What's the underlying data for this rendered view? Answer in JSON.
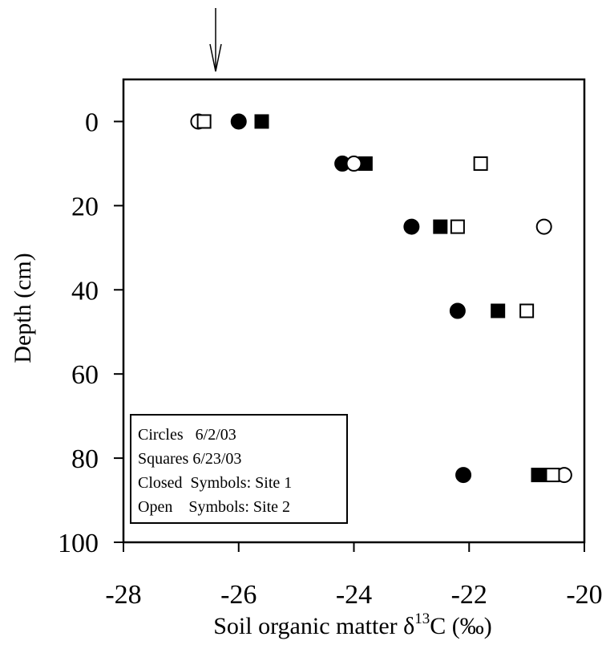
{
  "chart_data": {
    "type": "scatter",
    "xlabel": {
      "prefix": "Soil organic matter δ",
      "superscript": "13",
      "suffix": "C (‰)"
    },
    "ylabel": "Depth (cm)",
    "xlim": [
      -28,
      -20
    ],
    "ylim": [
      100,
      -10
    ],
    "y_inverted": true,
    "x_ticks": [
      -28,
      -26,
      -24,
      -22,
      -20
    ],
    "x_tick_labels": [
      "-28",
      "-26",
      "-24",
      "-22",
      "-20"
    ],
    "y_ticks": [
      0,
      20,
      40,
      60,
      80,
      100
    ],
    "y_tick_labels": [
      "0",
      "20",
      "40",
      "60",
      "80",
      "100"
    ],
    "grid": false,
    "legend_position": "bottom-left",
    "legend_lines": [
      "Circles   6/2/03",
      "Squares 6/23/03",
      "Closed  Symbols: Site 1",
      "Open    Symbols: Site 2"
    ],
    "series": [
      {
        "marker": "circle",
        "filled": true,
        "points": [
          {
            "x": -26.0,
            "y": 0
          },
          {
            "x": -24.2,
            "y": 10
          },
          {
            "x": -23.0,
            "y": 25
          },
          {
            "x": -22.2,
            "y": 45
          },
          {
            "x": -22.1,
            "y": 84
          }
        ]
      },
      {
        "marker": "square",
        "filled": true,
        "points": [
          {
            "x": -25.6,
            "y": 0
          },
          {
            "x": -23.8,
            "y": 10
          },
          {
            "x": -22.5,
            "y": 25
          },
          {
            "x": -21.5,
            "y": 45
          },
          {
            "x": -20.8,
            "y": 84
          }
        ]
      },
      {
        "marker": "circle",
        "filled": false,
        "points": [
          {
            "x": -26.7,
            "y": 0
          },
          {
            "x": -24.0,
            "y": 10
          },
          {
            "x": -20.7,
            "y": 25
          },
          {
            "x": -20.35,
            "y": 84
          }
        ]
      },
      {
        "marker": "square",
        "filled": false,
        "points": [
          {
            "x": -26.6,
            "y": 0
          },
          {
            "x": -21.8,
            "y": 10
          },
          {
            "x": -22.2,
            "y": 25
          },
          {
            "x": -21.0,
            "y": 45
          },
          {
            "x": -20.55,
            "y": 84
          }
        ]
      }
    ],
    "annotations": [
      {
        "type": "arrow",
        "x": -26.4,
        "direction": "down"
      }
    ]
  }
}
